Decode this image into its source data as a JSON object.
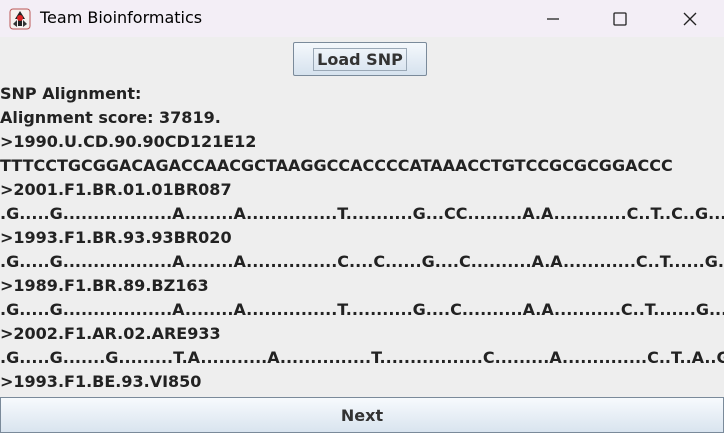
{
  "window": {
    "title": "Team Bioinformatics",
    "icon": "java-duke-icon"
  },
  "toolbar": {
    "load_label": "Load SNP"
  },
  "content": {
    "heading": "SNP Alignment:",
    "score": "Alignment score: 37819.",
    "lines": [
      ">1990.U.CD.90.90CD121E12",
      "TTTCCTGCGGACAGACCAACGCTAAGGCCACCCCATAAACCTGTCCGCGCGGACCC",
      ">2001.F1.BR.01.01BR087",
      ".G.....G..................A........A...............T...........G...CC.........A.A............C..T..C..G...T........AC..........",
      ">1993.F1.BR.93.93BR020",
      ".G.....G..................A........A...............C....C......G....C..........A.A............C..T......G...TA........C..........",
      ">1989.F1.BR.89.BZ163",
      ".G.....G..................A........A...............T...........G....C..........A.A...........C..T.......G....T.........C..........",
      ">2002.F1.AR.02.ARE933",
      ".G.....G.......G.........T.A...........A...............T.................C.........A..............C..T..A..G...T....G...C..........",
      ">1993.F1.BE.93.VI850"
    ]
  },
  "footer": {
    "next_label": "Next"
  }
}
